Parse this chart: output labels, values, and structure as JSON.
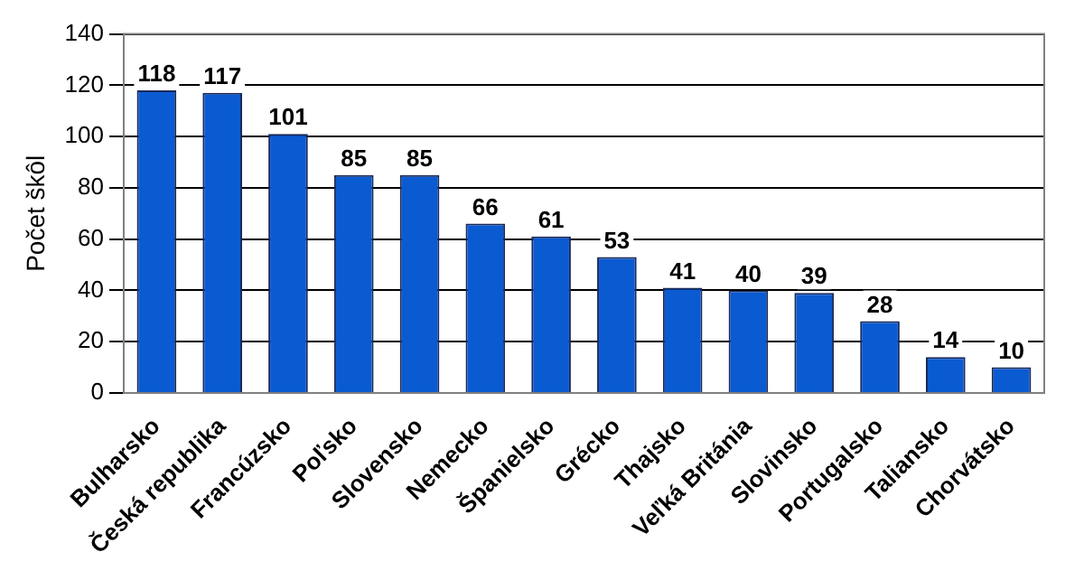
{
  "chart_data": {
    "type": "bar",
    "ylabel": "Počet škôl",
    "categories": [
      "Bulharsko",
      "Česká republika",
      "Francúzsko",
      "Poľsko",
      "Slovensko",
      "Nemecko",
      "Španielsko",
      "Grécko",
      "Thajsko",
      "Veľká Británia",
      "Slovinsko",
      "Portugalsko",
      "Taliansko",
      "Chorvátsko"
    ],
    "values": [
      118,
      117,
      101,
      85,
      85,
      66,
      61,
      53,
      41,
      40,
      39,
      28,
      14,
      10
    ],
    "color": "#0a5ad2",
    "ylim": [
      0,
      140
    ],
    "yticks": [
      0,
      20,
      40,
      60,
      80,
      100,
      120,
      140
    ],
    "grid": "y",
    "data_labels": true
  }
}
